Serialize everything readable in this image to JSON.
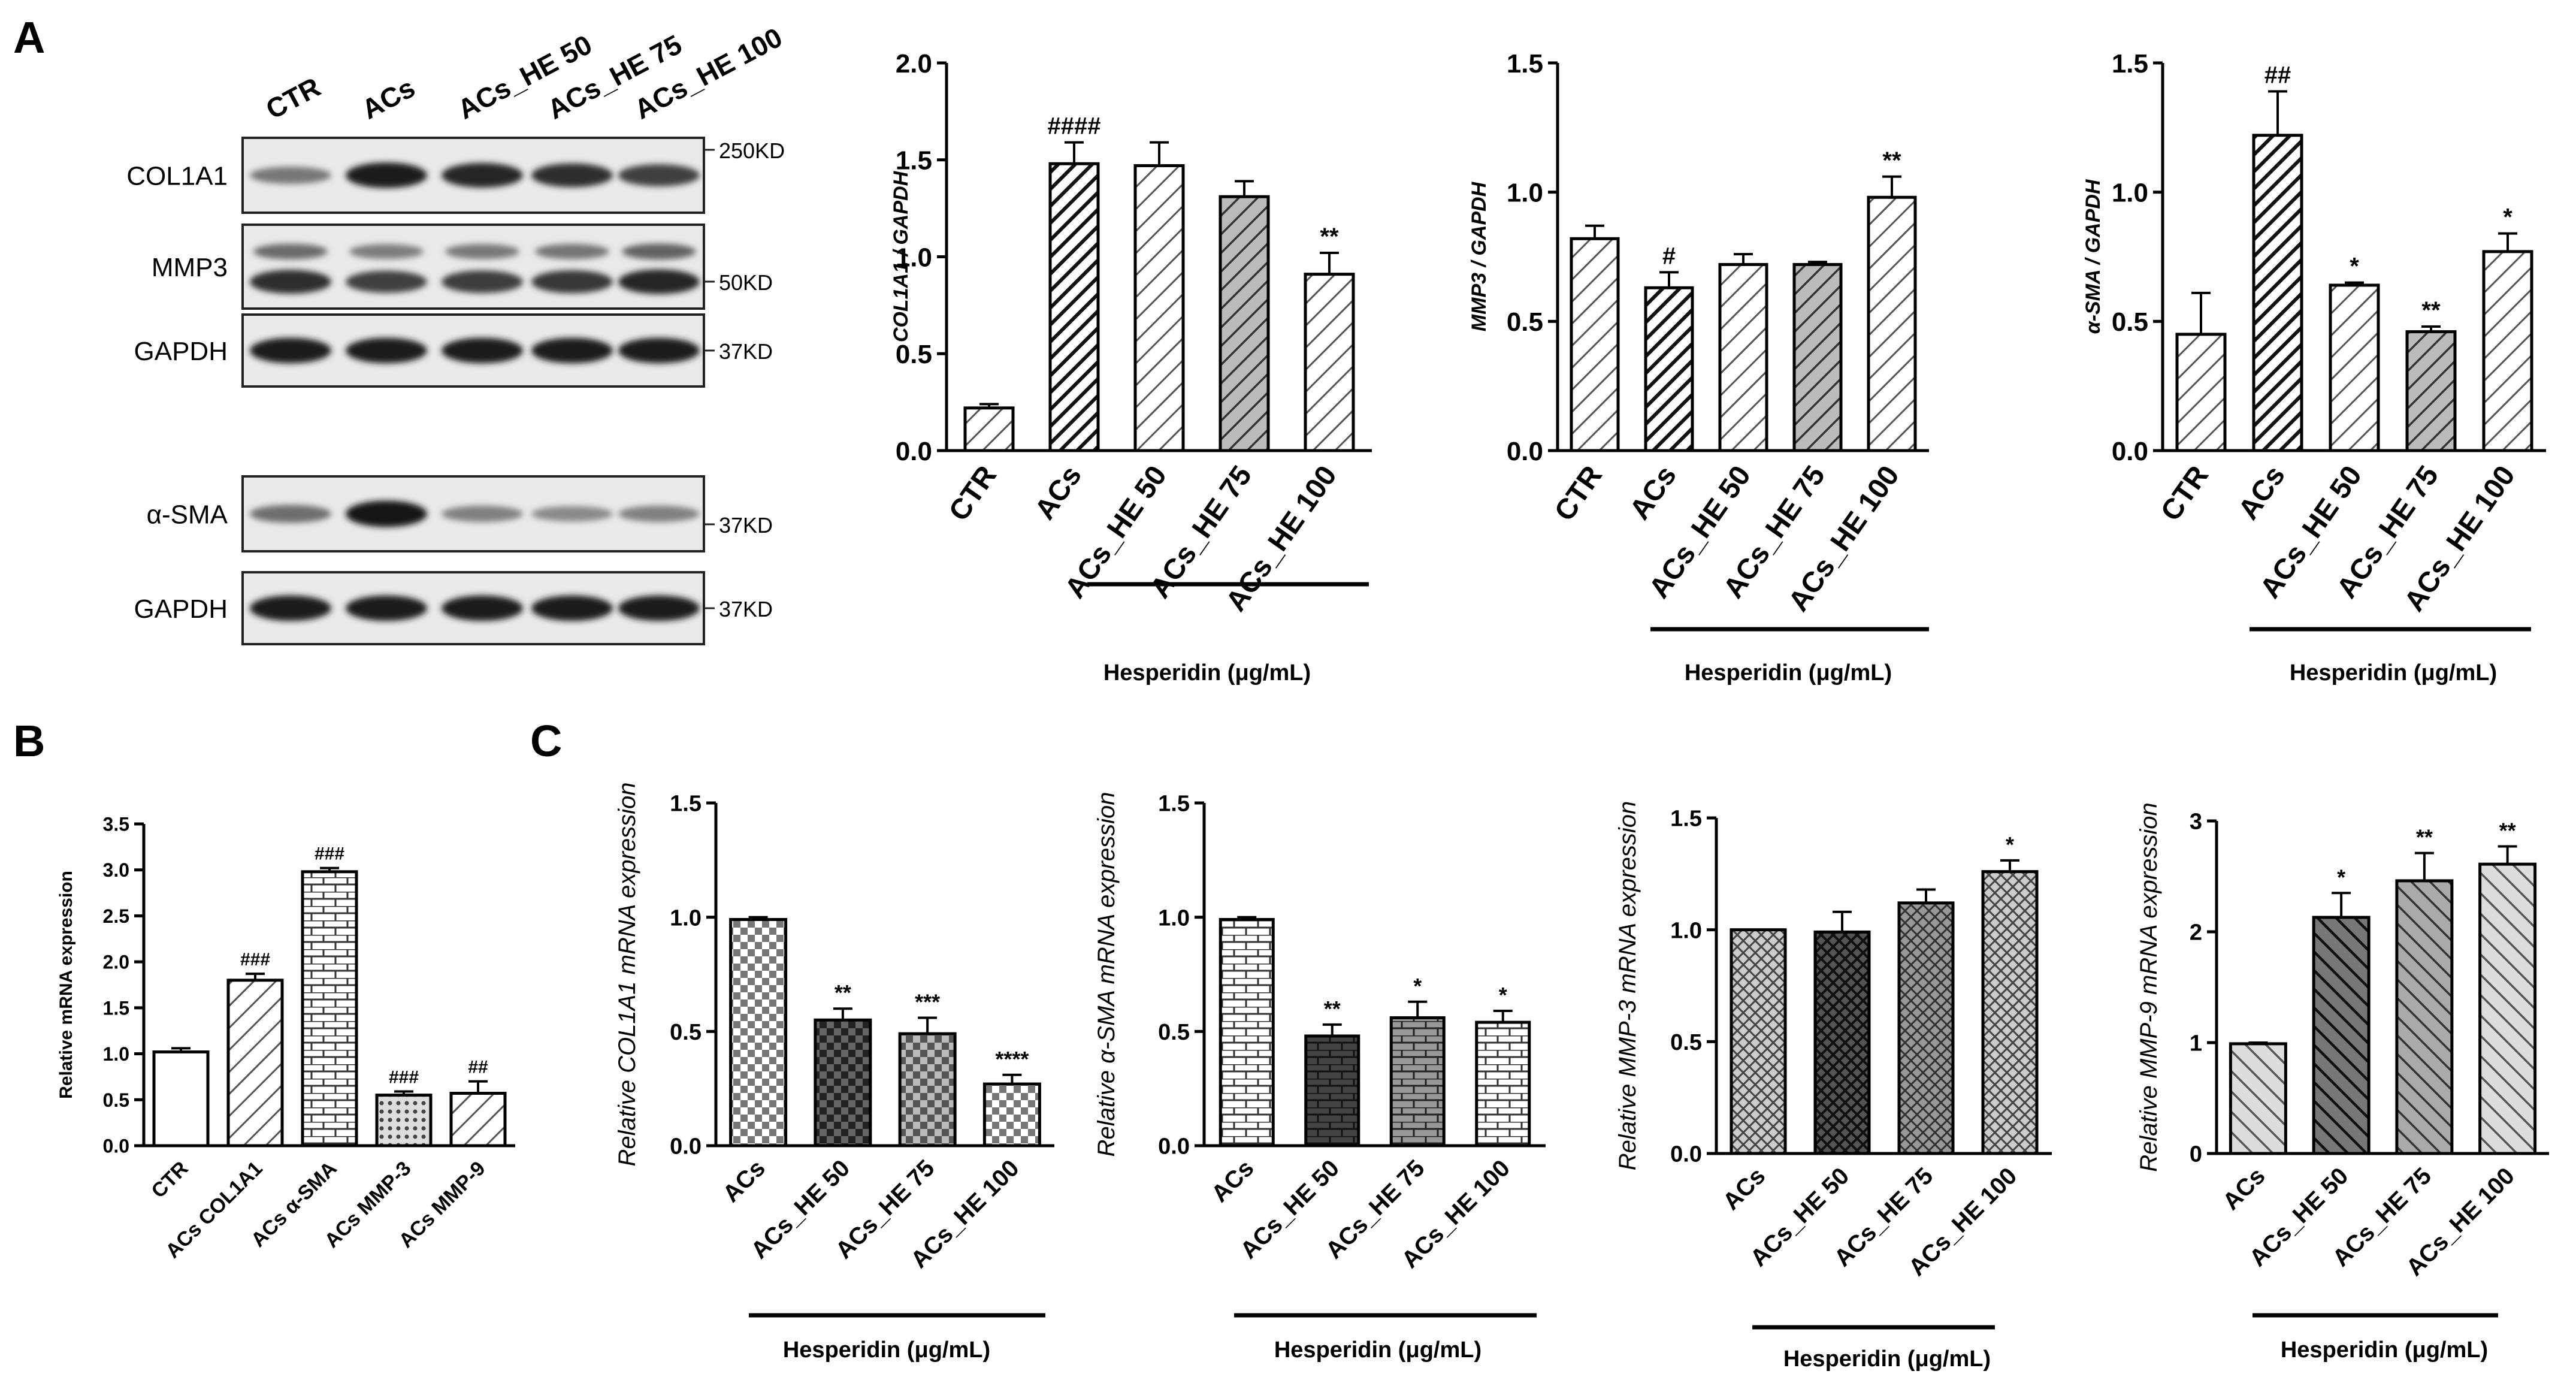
{
  "panel_labels": {
    "a": "A",
    "b": "B",
    "c": "C"
  },
  "blot": {
    "lanes": [
      "CTR",
      "ACs",
      "ACs_HE 50",
      "ACs_HE 75",
      "ACs_HE 100"
    ],
    "rows": [
      {
        "label": "COL1A1",
        "marker": "250KD",
        "intensity": [
          0.45,
          0.95,
          0.9,
          0.85,
          0.75
        ]
      },
      {
        "label": "MMP3",
        "marker": "50KD",
        "intensity": [
          0.85,
          0.75,
          0.78,
          0.8,
          0.9
        ]
      },
      {
        "label": "GAPDH",
        "marker": "37KD",
        "intensity": [
          0.95,
          0.95,
          0.95,
          0.95,
          0.95
        ]
      },
      {
        "label": "α-SMA",
        "marker": "37KD",
        "intensity": [
          0.5,
          1.0,
          0.4,
          0.35,
          0.4
        ]
      },
      {
        "label": "GAPDH",
        "marker": "37KD",
        "intensity": [
          0.95,
          0.95,
          0.95,
          0.95,
          0.95
        ]
      }
    ]
  },
  "chart_data": [
    {
      "id": "a1",
      "type": "bar",
      "ylabel": "COL1A1 / GAPDH",
      "ylim": [
        0,
        2.0
      ],
      "ticks": [
        "0.0",
        "0.5",
        "1.0",
        "1.5",
        "2.0"
      ],
      "tick_values": [
        0,
        0.5,
        1,
        1.5,
        2
      ],
      "categories": [
        "CTR",
        "ACs",
        "ACs_HE 50",
        "ACs_HE 75",
        "ACs_HE 100"
      ],
      "values": [
        0.22,
        1.48,
        1.47,
        1.31,
        0.91
      ],
      "errors": [
        0.02,
        0.11,
        0.12,
        0.08,
        0.11
      ],
      "annotations": [
        "",
        "####",
        "",
        "",
        "**"
      ],
      "patterns": [
        "hatch-light",
        "hatch-dark",
        "hatch-light",
        "hatch-mid",
        "hatch-light"
      ],
      "xlabel": "Hesperidin (μg/mL)"
    },
    {
      "id": "a2",
      "type": "bar",
      "ylabel": "MMP3 / GAPDH",
      "ylim": [
        0,
        1.5
      ],
      "ticks": [
        "0.0",
        "0.5",
        "1.0",
        "1.5"
      ],
      "tick_values": [
        0,
        0.5,
        1,
        1.5
      ],
      "categories": [
        "CTR",
        "ACs",
        "ACs_HE 50",
        "ACs_HE 75",
        "ACs_HE 100"
      ],
      "values": [
        0.82,
        0.63,
        0.72,
        0.72,
        0.98
      ],
      "errors": [
        0.05,
        0.06,
        0.04,
        0.01,
        0.08
      ],
      "annotations": [
        "",
        "#",
        "",
        "",
        "**"
      ],
      "patterns": [
        "hatch-light",
        "hatch-dark",
        "hatch-light",
        "hatch-mid",
        "hatch-light"
      ],
      "xlabel": "Hesperidin (μg/mL)"
    },
    {
      "id": "a3",
      "type": "bar",
      "ylabel": "α-SMA / GAPDH",
      "ylim": [
        0,
        1.5
      ],
      "ticks": [
        "0.0",
        "0.5",
        "1.0",
        "1.5"
      ],
      "tick_values": [
        0,
        0.5,
        1,
        1.5
      ],
      "categories": [
        "CTR",
        "ACs",
        "ACs_HE 50",
        "ACs_HE 75",
        "ACs_HE 100"
      ],
      "values": [
        0.45,
        1.22,
        0.64,
        0.46,
        0.77
      ],
      "errors": [
        0.16,
        0.17,
        0.01,
        0.02,
        0.07
      ],
      "annotations": [
        "",
        "##",
        "*",
        "**",
        "*"
      ],
      "patterns": [
        "hatch-light",
        "hatch-dark",
        "hatch-light",
        "hatch-mid",
        "hatch-light"
      ],
      "xlabel": "Hesperidin (μg/mL)"
    },
    {
      "id": "b",
      "type": "bar",
      "ylabel": "Relative mRNA expression",
      "ylim": [
        0,
        3.5
      ],
      "ticks": [
        "0.0",
        "0.5",
        "1.0",
        "1.5",
        "2.0",
        "2.5",
        "3.0",
        "3.5"
      ],
      "tick_values": [
        0,
        0.5,
        1,
        1.5,
        2,
        2.5,
        3,
        3.5
      ],
      "categories": [
        "CTR",
        "ACs COL1A1",
        "ACs α-SMA",
        "ACs MMP-3",
        "ACs MMP-9"
      ],
      "values": [
        1.02,
        1.8,
        2.98,
        0.55,
        0.57
      ],
      "errors": [
        0.04,
        0.07,
        0.04,
        0.04,
        0.13
      ],
      "annotations": [
        "",
        "###",
        "###",
        "###",
        "##"
      ],
      "patterns": [
        "white",
        "hatch-light",
        "brick",
        "dots",
        "hatch-light"
      ],
      "xlabel": ""
    },
    {
      "id": "c1",
      "type": "bar",
      "ylabel": "Relative COL1A1 mRNA expression",
      "ylim": [
        0,
        1.5
      ],
      "ticks": [
        "0.0",
        "0.5",
        "1.0",
        "1.5"
      ],
      "tick_values": [
        0,
        0.5,
        1,
        1.5
      ],
      "categories": [
        "ACs",
        "ACs_HE 50",
        "ACs_HE 75",
        "ACs_HE 100"
      ],
      "values": [
        0.99,
        0.55,
        0.49,
        0.27
      ],
      "errors": [
        0.01,
        0.05,
        0.07,
        0.04
      ],
      "annotations": [
        "",
        "**",
        "***",
        "****"
      ],
      "patterns": [
        "check",
        "check-dark",
        "check-mid",
        "check"
      ],
      "xlabel": "Hesperidin (μg/mL)"
    },
    {
      "id": "c2",
      "type": "bar",
      "ylabel": "Relative α-SMA mRNA expression",
      "ylim": [
        0,
        1.5
      ],
      "ticks": [
        "0.0",
        "0.5",
        "1.0",
        "1.5"
      ],
      "tick_values": [
        0,
        0.5,
        1,
        1.5
      ],
      "categories": [
        "ACs",
        "ACs_HE 50",
        "ACs_HE 75",
        "ACs_HE 100"
      ],
      "values": [
        0.99,
        0.48,
        0.56,
        0.54
      ],
      "errors": [
        0.01,
        0.05,
        0.07,
        0.05
      ],
      "annotations": [
        "",
        "**",
        "*",
        "*"
      ],
      "patterns": [
        "brick",
        "brick-dark",
        "brick-mid",
        "brick"
      ],
      "xlabel": "Hesperidin (μg/mL)"
    },
    {
      "id": "c3",
      "type": "bar",
      "ylabel": "Relative MMP-3 mRNA expression",
      "ylim": [
        0,
        1.5
      ],
      "ticks": [
        "0.0",
        "0.5",
        "1.0",
        "1.5"
      ],
      "tick_values": [
        0,
        0.5,
        1,
        1.5
      ],
      "categories": [
        "ACs",
        "ACs_HE 50",
        "ACs_HE 75",
        "ACs_HE 100"
      ],
      "values": [
        1.0,
        0.99,
        1.12,
        1.26
      ],
      "errors": [
        0.0,
        0.09,
        0.06,
        0.05
      ],
      "annotations": [
        "",
        "",
        "",
        "*"
      ],
      "patterns": [
        "cross",
        "cross-dark",
        "cross-mid",
        "cross"
      ],
      "xlabel": "Hesperidin (μg/mL)"
    },
    {
      "id": "c4",
      "type": "bar",
      "ylabel": "Relative MMP-9 mRNA expression",
      "ylim": [
        0,
        3
      ],
      "ticks": [
        "0",
        "1",
        "2",
        "3"
      ],
      "tick_values": [
        0,
        1,
        2,
        3
      ],
      "categories": [
        "ACs",
        "ACs_HE 50",
        "ACs_HE 75",
        "ACs_HE 100"
      ],
      "values": [
        0.99,
        2.13,
        2.46,
        2.61
      ],
      "errors": [
        0.01,
        0.22,
        0.25,
        0.16
      ],
      "annotations": [
        "",
        "*",
        "**",
        "**"
      ],
      "patterns": [
        "diag",
        "diag-dark",
        "diag-mid",
        "diag"
      ],
      "xlabel": "Hesperidin (μg/mL)"
    }
  ]
}
